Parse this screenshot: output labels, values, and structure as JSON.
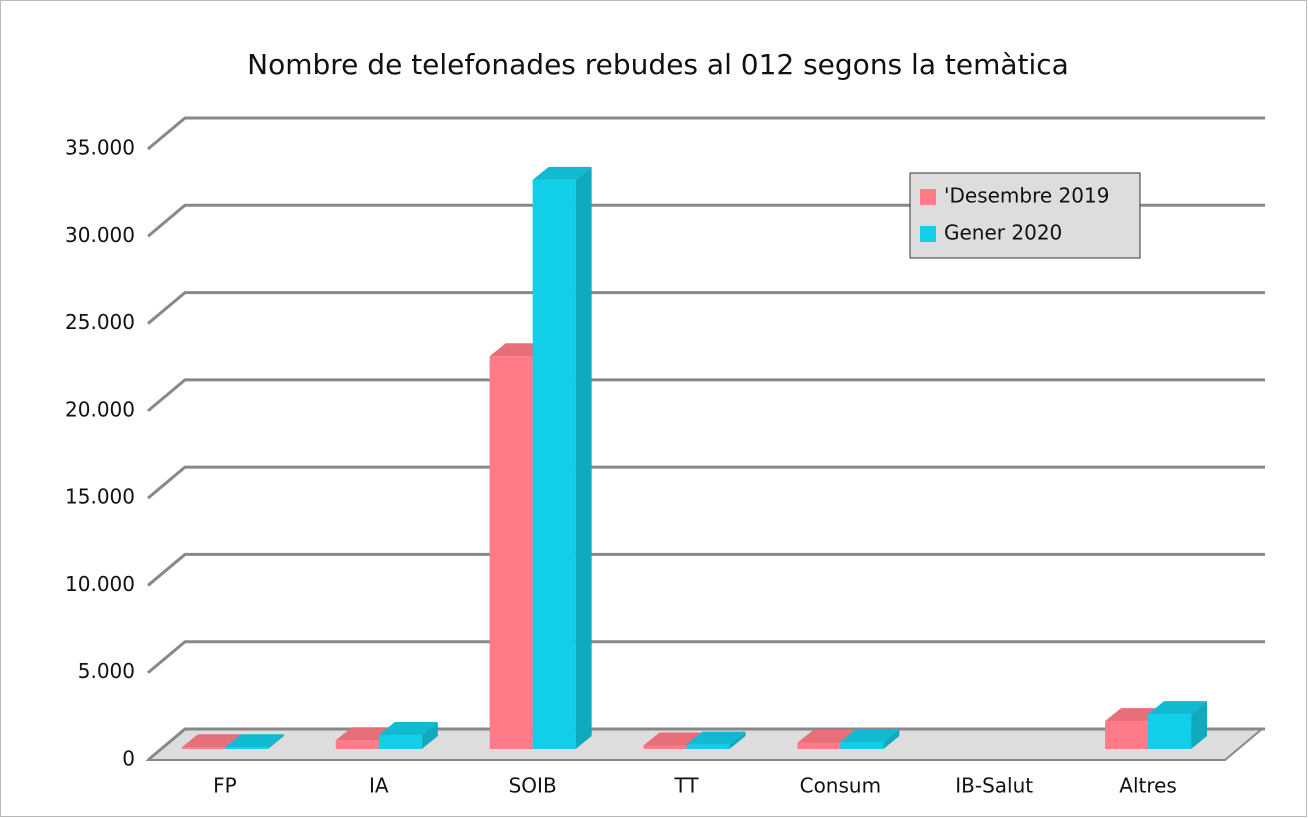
{
  "chart_data": {
    "type": "bar3d",
    "title": "Nombre de telefonades rebudes al 012 segons la temàtica",
    "categories": [
      "FP",
      "IA",
      "SOIB",
      "TT",
      "Consum",
      "IB-Salut",
      "Altres"
    ],
    "series": [
      {
        "name": "'Desembre 2019",
        "color": "#ff7b87",
        "values": [
          100,
          500,
          22500,
          200,
          350,
          null,
          1600
        ]
      },
      {
        "name": "Gener 2020",
        "color": "#12cfe8",
        "values": [
          100,
          800,
          32600,
          250,
          400,
          null,
          2000
        ]
      }
    ],
    "ylim": [
      0,
      35000
    ],
    "yticks": [
      0,
      {
        "value": 5000,
        "label": "5.000"
      },
      {
        "value": 10000,
        "label": "10.000"
      },
      {
        "value": 15000,
        "label": "15.000"
      },
      {
        "value": 20000,
        "label": "20.000"
      },
      {
        "value": 25000,
        "label": "25.000"
      },
      {
        "value": 30000,
        "label": "30.000"
      },
      {
        "value": 35000,
        "label": "35.000"
      }
    ],
    "grid": true,
    "legend": "upper right"
  }
}
